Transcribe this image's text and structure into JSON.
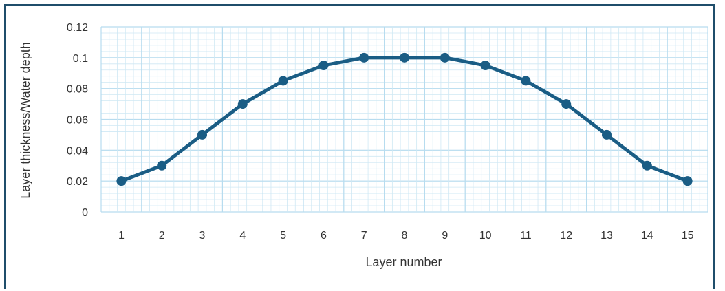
{
  "chart_data": {
    "type": "line",
    "title": "",
    "xlabel": "Layer number",
    "ylabel": "Layer thickness/Water depth",
    "categories": [
      "1",
      "2",
      "3",
      "4",
      "5",
      "6",
      "7",
      "8",
      "9",
      "10",
      "11",
      "12",
      "13",
      "14",
      "15"
    ],
    "series": [
      {
        "values": [
          0.02,
          0.03,
          0.05,
          0.07,
          0.085,
          0.095,
          0.1,
          0.1,
          0.1,
          0.095,
          0.085,
          0.07,
          0.05,
          0.03,
          0.02
        ]
      }
    ],
    "ylim": [
      0,
      0.12
    ],
    "yticks": [
      "0",
      "0.02",
      "0.04",
      "0.06",
      "0.08",
      "0.1",
      "0.12"
    ],
    "grid": true,
    "colors": {
      "series": "#1a5d85",
      "grid": "#cfe8f4",
      "frame": "#1f4e6b"
    }
  }
}
